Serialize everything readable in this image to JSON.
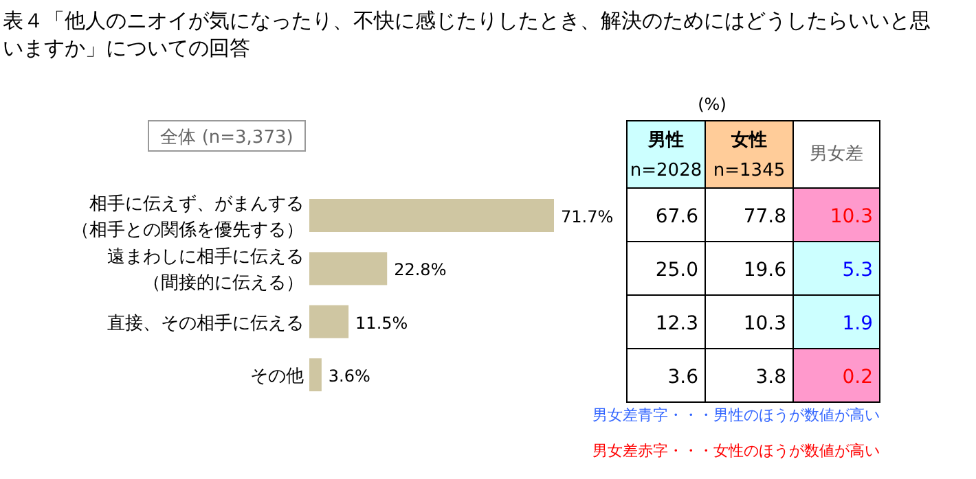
{
  "chart_data": [
    {
      "type": "bar",
      "orientation": "horizontal",
      "title": "表４「他人のニオイが気になったり、不快に感じたりしたとき、解決のためにはどうしたらいいと思いますか」についての回答",
      "subtitle": "全体 (n=3,373)",
      "categories": [
        "相手に伝えず、がまんする（相手との関係を優先する）",
        "遠まわしに相手に伝える（間接的に伝える）",
        "直接、その相手に伝える",
        "その他"
      ],
      "values": [
        71.7,
        22.8,
        11.5,
        3.6
      ],
      "color": "#cfc6a2",
      "value_labels": [
        "71.7%",
        "22.8%",
        "11.5%",
        "3.6%"
      ]
    },
    {
      "type": "heatmap",
      "annotations": [
        "(%)",
        "男女差青字・・・男性のほうが数値が高い",
        "男女差赤字・・・女性のほうが数値が高い"
      ],
      "categories": [
        "男性\nn=2028",
        "女性\nn=1345",
        "男女差"
      ],
      "y_categories": [
        null,
        null,
        null,
        null
      ],
      "cells": [
        [
          67.6,
          77.8,
          10.3
        ],
        [
          25.0,
          19.6,
          5.3
        ],
        [
          12.3,
          10.3,
          1.9
        ],
        [
          3.6,
          3.8,
          0.2
        ]
      ],
      "cell_labels": [
        [
          "67.6",
          "77.8",
          "10.3"
        ],
        [
          "25.0",
          "19.6",
          "5.3"
        ],
        [
          "12.3",
          "10.3",
          "1.9"
        ],
        [
          "3.6",
          "3.8",
          "0.2"
        ]
      ],
      "colors": [
        [
          null,
          null,
          "#ff0000"
        ],
        [
          null,
          null,
          "#0000ff"
        ],
        [
          null,
          null,
          "#0000ff"
        ],
        [
          null,
          null,
          "#ff0000"
        ]
      ]
    }
  ]
}
